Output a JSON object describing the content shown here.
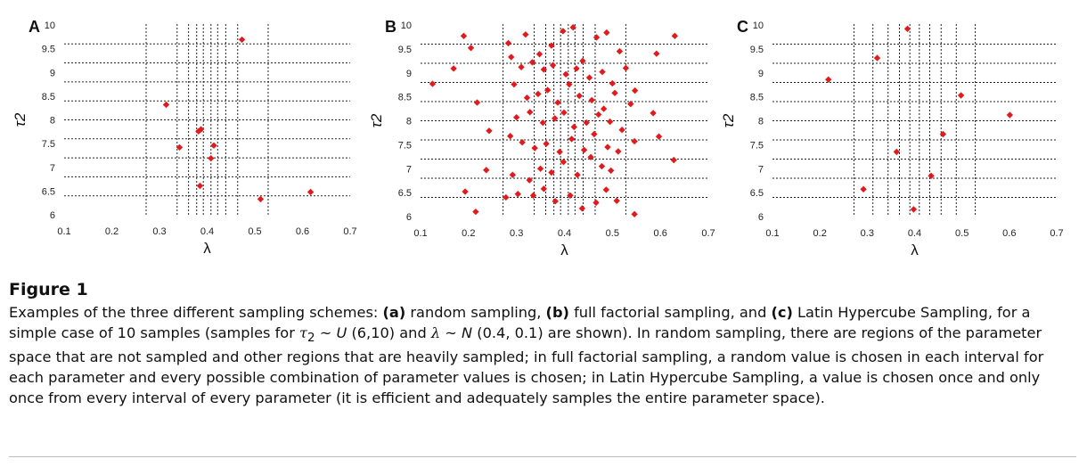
{
  "chart_data": [
    {
      "type": "scatter",
      "panel_label": "A",
      "xlabel": "λ",
      "ylabel": "τ2",
      "xlim": [
        0.1,
        0.7
      ],
      "ylim": [
        6,
        10
      ],
      "x_ticks": [
        "0.1",
        "0.2",
        "0.3",
        "0.4",
        "0.5",
        "0.6",
        "0.7"
      ],
      "y_ticks": [
        "6",
        "6.5",
        "7",
        "7.5",
        "8",
        "8.5",
        "9",
        "9.5",
        "10"
      ],
      "grid": "dashed interval lines",
      "v_intervals": [
        0.272,
        0.337,
        0.361,
        0.378,
        0.392,
        0.408,
        0.422,
        0.439,
        0.464,
        0.528
      ],
      "h_intervals": [
        6.4,
        6.8,
        7.2,
        7.6,
        8.0,
        8.4,
        8.8,
        9.2,
        9.6
      ],
      "marker_color": "#e31a1c",
      "series": [
        {
          "x": [
            0.473,
            0.314,
            0.387,
            0.382,
            0.342,
            0.414,
            0.408,
            0.385,
            0.512,
            0.617
          ],
          "y": [
            9.69,
            8.32,
            7.8,
            7.76,
            7.42,
            7.46,
            7.19,
            6.61,
            6.33,
            6.48
          ]
        }
      ]
    },
    {
      "type": "scatter",
      "panel_label": "B",
      "xlabel": "λ",
      "ylabel": "τ2",
      "xlim": [
        0.1,
        0.7
      ],
      "ylim": [
        6,
        10
      ],
      "x_ticks": [
        "0.1",
        "0.2",
        "0.3",
        "0.4",
        "0.5",
        "0.6",
        "0.7"
      ],
      "y_ticks": [
        "6",
        "6.5",
        "7",
        "7.5",
        "8",
        "8.5",
        "9",
        "9.5",
        "10"
      ],
      "grid": "dashed interval lines",
      "v_intervals": [
        0.272,
        0.337,
        0.361,
        0.378,
        0.392,
        0.408,
        0.422,
        0.439,
        0.464,
        0.528
      ],
      "h_intervals": [
        6.4,
        6.8,
        7.2,
        7.6,
        8.0,
        8.4,
        8.8,
        9.2,
        9.6
      ],
      "marker_color": "#e31a1c",
      "series": [
        {
          "x": [
            0.19,
            0.205,
            0.169,
            0.125,
            0.218,
            0.283,
            0.319,
            0.348,
            0.373,
            0.397,
            0.418,
            0.438,
            0.467,
            0.488,
            0.515,
            0.592,
            0.63,
            0.289,
            0.31,
            0.333,
            0.357,
            0.376,
            0.403,
            0.425,
            0.452,
            0.479,
            0.5,
            0.528,
            0.547,
            0.295,
            0.322,
            0.345,
            0.365,
            0.386,
            0.41,
            0.431,
            0.457,
            0.482,
            0.505,
            0.538,
            0.585,
            0.3,
            0.328,
            0.355,
            0.38,
            0.399,
            0.42,
            0.446,
            0.471,
            0.495,
            0.52,
            0.597,
            0.243,
            0.287,
            0.312,
            0.338,
            0.362,
            0.39,
            0.415,
            0.441,
            0.462,
            0.49,
            0.512,
            0.546,
            0.628,
            0.237,
            0.292,
            0.327,
            0.35,
            0.373,
            0.398,
            0.427,
            0.455,
            0.478,
            0.497,
            0.193,
            0.215,
            0.278,
            0.303,
            0.335,
            0.357,
            0.381,
            0.412,
            0.437,
            0.466,
            0.487,
            0.509,
            0.546
          ],
          "y": [
            9.77,
            9.52,
            9.09,
            8.77,
            8.38,
            9.62,
            9.8,
            9.39,
            9.57,
            9.87,
            9.95,
            9.25,
            9.74,
            9.84,
            9.45,
            9.4,
            9.77,
            9.33,
            9.12,
            9.22,
            9.07,
            9.16,
            8.97,
            9.09,
            8.9,
            9.02,
            8.78,
            9.1,
            8.63,
            8.76,
            8.48,
            8.56,
            8.64,
            8.38,
            8.76,
            8.52,
            8.43,
            8.25,
            8.58,
            8.35,
            8.16,
            8.07,
            8.18,
            7.96,
            8.05,
            8.17,
            7.87,
            7.96,
            8.13,
            7.98,
            7.81,
            7.67,
            7.79,
            7.68,
            7.55,
            7.43,
            7.52,
            7.35,
            7.62,
            7.39,
            7.72,
            7.45,
            7.36,
            7.57,
            7.18,
            6.97,
            6.87,
            6.76,
            7.0,
            6.92,
            7.14,
            6.87,
            7.24,
            7.05,
            6.96,
            6.52,
            6.1,
            6.4,
            6.47,
            6.44,
            6.58,
            6.32,
            6.44,
            6.17,
            6.29,
            6.56,
            6.33,
            6.05
          ]
        }
      ]
    },
    {
      "type": "scatter",
      "panel_label": "C",
      "xlabel": "λ",
      "ylabel": "τ2",
      "xlim": [
        0.1,
        0.7
      ],
      "ylim": [
        6,
        10
      ],
      "x_ticks": [
        "0.1",
        "0.2",
        "0.3",
        "0.4",
        "0.5",
        "0.6",
        "0.7"
      ],
      "y_ticks": [
        "6",
        "6.5",
        "7",
        "7.5",
        "8",
        "8.5",
        "9",
        "9.5",
        "10"
      ],
      "grid": "dashed interval lines",
      "v_intervals": [
        0.272,
        0.312,
        0.344,
        0.368,
        0.39,
        0.41,
        0.432,
        0.456,
        0.488,
        0.528
      ],
      "h_intervals": [
        6.4,
        6.8,
        7.2,
        7.6,
        8.0,
        8.4,
        8.8,
        9.2,
        9.6
      ],
      "marker_color": "#e31a1c",
      "series": [
        {
          "x": [
            0.385,
            0.321,
            0.218,
            0.498,
            0.601,
            0.46,
            0.362,
            0.435,
            0.292,
            0.398
          ],
          "y": [
            9.92,
            9.31,
            8.86,
            8.53,
            8.12,
            7.72,
            7.35,
            6.85,
            6.57,
            6.15
          ]
        }
      ]
    }
  ],
  "caption": {
    "title": "Figure 1",
    "p1": "Examples of the three different sampling schemes: ",
    "a_label": "(a)",
    "p2": " random sampling, ",
    "b_label": "(b)",
    "p3": " full factorial sampling, and ",
    "c_label": "(c)",
    "p4": " Latin Hypercube Sampling, for a simple case of 10 samples (samples for ",
    "tau": "τ",
    "tau_sub": "2",
    "p5": " ~ ",
    "dist_u": "U",
    "p6": " (6,10) and ",
    "lambda": "λ",
    "p7": " ~ ",
    "dist_n": "N",
    "p8": " (0.4, 0.1) are shown). In random sampling, there are regions of the parameter space that are not sampled and other regions that are heavily sampled; in full factorial sampling, a random value is chosen in each interval for each parameter and every possible combination of parameter values is chosen; in Latin Hypercube Sampling, a value is chosen once and only once from every interval of every parameter (it is efficient and adequately samples the entire parameter space)."
  }
}
